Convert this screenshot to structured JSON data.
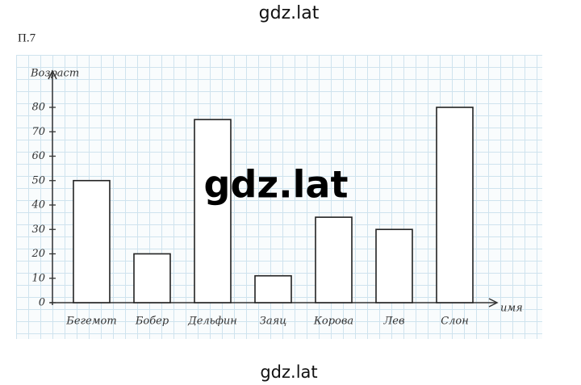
{
  "header": "gdz.lat",
  "problem": "П.7",
  "watermark": "gdz.lat",
  "footer": "gdz.lat",
  "chart_data": {
    "type": "bar",
    "y_label": "Возраст",
    "x_label": "имя",
    "categories": [
      "Бегемот",
      "Бобер",
      "Дельфин",
      "Заяц",
      "Корова",
      "Лев",
      "Слон"
    ],
    "values": [
      50,
      20,
      75,
      11,
      35,
      30,
      80
    ],
    "color": "#ffffff",
    "ylim": [
      0,
      90
    ],
    "yticks": [
      0,
      10,
      20,
      30,
      40,
      50,
      60,
      70,
      80
    ]
  }
}
